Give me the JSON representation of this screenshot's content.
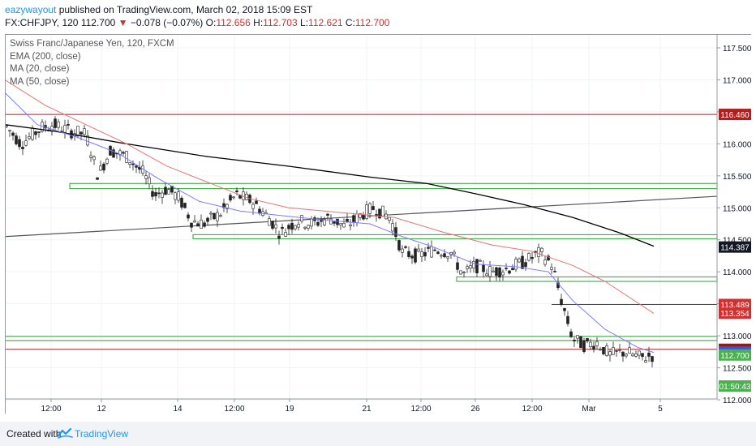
{
  "header": {
    "username": "eazywayout",
    "published_text": "published on TradingView.com, March 02, 2018 15:09 EST",
    "symbol_line": "FX:CHFJPY, 120",
    "last": "112.700",
    "change_arrow": "▼",
    "change": "−0.078 (−0.07%)",
    "open_label": "O:",
    "open": "112.656",
    "high_label": "H:",
    "high": "112.703",
    "low_label": "L:",
    "low": "112.621",
    "close_label": "C:",
    "close": "112.700"
  },
  "legend": {
    "title": "Swiss Franc/Japanese Yen, 120, FXCM",
    "ema": "EMA (200, close)",
    "ma20": "MA (20, close)",
    "ma50": "MA (50, close)"
  },
  "price_axis": {
    "ticks": [
      "117.500",
      "117.000",
      "116.500",
      "116.000",
      "115.500",
      "115.000",
      "114.500",
      "114.000",
      "113.500",
      "113.000",
      "112.500",
      "112.000"
    ]
  },
  "price_tags": [
    {
      "text": "116.460",
      "price": 116.46,
      "color": "#b71c1c"
    },
    {
      "text": "114.387",
      "price": 114.387,
      "color": "#131722"
    },
    {
      "text": "113.489",
      "price": 113.489,
      "color": "#d32f2f"
    },
    {
      "text": "113.354",
      "price": 113.354,
      "color": "#d32f2f"
    },
    {
      "text": "112.789",
      "price": 112.789,
      "color": "#8d1c1c"
    },
    {
      "text": "112.745",
      "price": 112.745,
      "color": "#3f51e5"
    },
    {
      "text": "112.700",
      "price": 112.7,
      "color": "#4caf50"
    },
    {
      "text": "01:50:43",
      "price": 112.5,
      "color": "#4caf50"
    }
  ],
  "time_axis": {
    "labels": [
      "12:00",
      "12",
      "14",
      "12:00",
      "19",
      "21",
      "12:00",
      "26",
      "12:00",
      "Mar",
      "5"
    ]
  },
  "colors": {
    "up": "#26a69a",
    "down": "#ef5350",
    "ema200": "#000000",
    "ma20": "#7b7bff",
    "ma50": "#e57373",
    "support_zone": "#4caf50",
    "red_line": "#b71c1c",
    "trend": "#555555"
  },
  "chart_data": {
    "type": "candlestick",
    "symbol": "FX:CHFJPY",
    "interval": "120",
    "ylim": [
      111.9,
      117.7
    ],
    "horizontal_lines": [
      116.46,
      113.489,
      112.789
    ],
    "support_zones": [
      [
        115.3,
        115.38
      ],
      [
        114.52,
        114.58
      ],
      [
        113.85,
        113.92
      ],
      [
        112.95,
        112.99
      ]
    ],
    "ohlc_last": {
      "open": 112.656,
      "high": 112.703,
      "low": 112.621,
      "close": 112.7
    }
  },
  "footer": {
    "created_with": "Created with",
    "brand": "TradingView"
  }
}
